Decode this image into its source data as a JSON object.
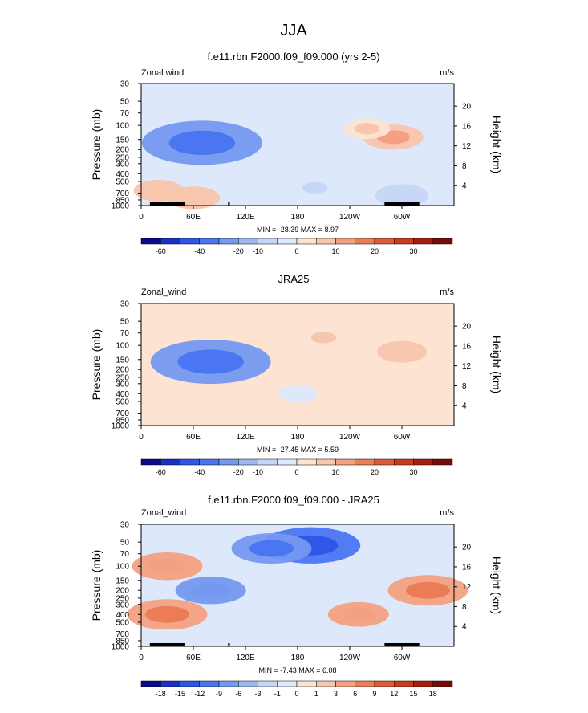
{
  "main_title": "JJA",
  "colors": {
    "neg": [
      "#0a0a8a",
      "#1c2fc4",
      "#2e57e8",
      "#4a76f2",
      "#7599f0",
      "#a0b8f2",
      "#c5d6f6",
      "#dde8fb"
    ],
    "pos": [
      "#fde4d2",
      "#f8c5ad",
      "#f3a182",
      "#ec7c56",
      "#df5a34",
      "#c93a1f",
      "#a51e10",
      "#7a0a06"
    ]
  },
  "chart_data": [
    {
      "type": "heatmap",
      "title": "f.e11.rbn.F2000.f09_f09.000 (yrs 2-5)",
      "left_label": "Zonal wind",
      "units": "m/s",
      "ylabel": "Pressure (mb)",
      "y2label": "Height (km)",
      "pressure_ticks": [
        "30",
        "50",
        "70",
        "100",
        "150",
        "200",
        "250",
        "300",
        "400",
        "500",
        "700",
        "850",
        "1000"
      ],
      "height_ticks": [
        "20",
        "16",
        "12",
        "8",
        "4"
      ],
      "lon_ticks": [
        "0",
        "60E",
        "120E",
        "180",
        "120W",
        "60W"
      ],
      "minmax": "MIN = -28.39  MAX =  8.97",
      "colorbar_labels": [
        "-60",
        "-40",
        "-20",
        "-10",
        "0",
        "10",
        "20",
        "30"
      ],
      "features": [
        {
          "lon": 70,
          "p": 165,
          "value": -25
        },
        {
          "lon": 20,
          "p": 650,
          "value": 5
        },
        {
          "lon": 60,
          "p": 800,
          "value": 6
        },
        {
          "lon": 290,
          "p": 140,
          "value": 8
        },
        {
          "lon": 260,
          "p": 110,
          "value": 4
        },
        {
          "lon": 200,
          "p": 600,
          "value": -4
        },
        {
          "lon": 300,
          "p": 750,
          "value": -6
        }
      ]
    },
    {
      "type": "heatmap",
      "title": "JRA25",
      "left_label": "Zonal_wind",
      "units": "m/s",
      "ylabel": "Pressure (mb)",
      "y2label": "Height (km)",
      "pressure_ticks": [
        "30",
        "50",
        "70",
        "100",
        "150",
        "200",
        "250",
        "300",
        "400",
        "500",
        "700",
        "850",
        "1000"
      ],
      "height_ticks": [
        "20",
        "16",
        "12",
        "8",
        "4"
      ],
      "lon_ticks": [
        "0",
        "60E",
        "120E",
        "180",
        "120W",
        "60W"
      ],
      "minmax": "MIN = -27.45  MAX =  5.59",
      "colorbar_labels": [
        "-60",
        "-40",
        "-20",
        "-10",
        "0",
        "10",
        "20",
        "30"
      ],
      "features": [
        {
          "lon": 80,
          "p": 160,
          "value": -25
        },
        {
          "lon": 210,
          "p": 80,
          "value": 4
        },
        {
          "lon": 300,
          "p": 120,
          "value": 5
        },
        {
          "lon": 60,
          "p": 650,
          "value": 3
        },
        {
          "lon": 180,
          "p": 400,
          "value": -2
        }
      ]
    },
    {
      "type": "heatmap",
      "title": "f.e11.rbn.F2000.f09_f09.000 - JRA25",
      "left_label": "Zonal_wind",
      "units": "m/s",
      "ylabel": "Pressure (mb)",
      "y2label": "Height (km)",
      "pressure_ticks": [
        "30",
        "50",
        "70",
        "100",
        "150",
        "200",
        "250",
        "300",
        "400",
        "500",
        "700",
        "850",
        "1000"
      ],
      "height_ticks": [
        "20",
        "16",
        "12",
        "8",
        "4"
      ],
      "lon_ticks": [
        "0",
        "60E",
        "120E",
        "180",
        "120W",
        "60W"
      ],
      "minmax": "MIN = -7.43  MAX =  6.08",
      "colorbar_labels": [
        "-18",
        "-15",
        "-12",
        "-9",
        "-6",
        "-3",
        "-1",
        "0",
        "1",
        "3",
        "6",
        "9",
        "12",
        "15",
        "18"
      ],
      "features": [
        {
          "lon": 195,
          "p": 55,
          "value": -7
        },
        {
          "lon": 30,
          "p": 100,
          "value": 4
        },
        {
          "lon": 30,
          "p": 400,
          "value": 5
        },
        {
          "lon": 330,
          "p": 200,
          "value": 5
        },
        {
          "lon": 150,
          "p": 60,
          "value": -5
        },
        {
          "lon": 250,
          "p": 400,
          "value": 3
        },
        {
          "lon": 80,
          "p": 200,
          "value": -4
        }
      ]
    }
  ]
}
